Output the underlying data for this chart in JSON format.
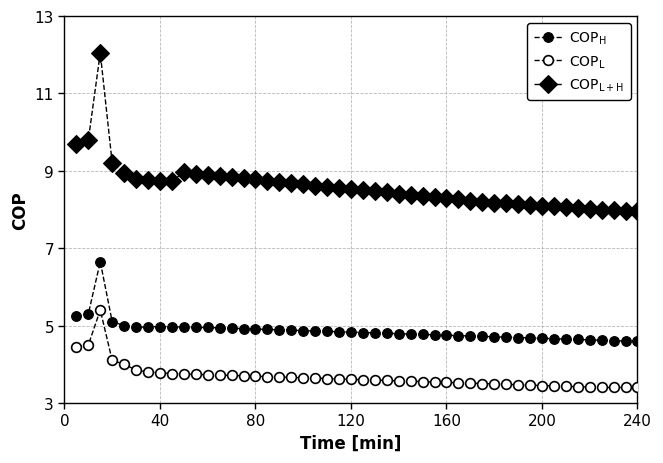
{
  "title": "",
  "xlabel": "Time [min]",
  "ylabel": "COP",
  "xlim": [
    0,
    240
  ],
  "ylim": [
    3,
    13
  ],
  "yticks": [
    3,
    5,
    7,
    9,
    11,
    13
  ],
  "xticks": [
    0,
    40,
    80,
    120,
    160,
    200,
    240
  ],
  "background_color": "#ffffff",
  "grid_color": "#999999",
  "COP_H_x": [
    5,
    10,
    15,
    20,
    25,
    30,
    35,
    40,
    45,
    50,
    55,
    60,
    65,
    70,
    75,
    80,
    85,
    90,
    95,
    100,
    105,
    110,
    115,
    120,
    125,
    130,
    135,
    140,
    145,
    150,
    155,
    160,
    165,
    170,
    175,
    180,
    185,
    190,
    195,
    200,
    205,
    210,
    215,
    220,
    225,
    230,
    235,
    240
  ],
  "COP_H_y": [
    5.25,
    5.3,
    6.65,
    5.1,
    5.0,
    4.95,
    4.97,
    4.97,
    4.97,
    4.96,
    4.95,
    4.95,
    4.94,
    4.93,
    4.92,
    4.91,
    4.9,
    4.89,
    4.88,
    4.87,
    4.86,
    4.85,
    4.84,
    4.83,
    4.82,
    4.81,
    4.8,
    4.79,
    4.78,
    4.77,
    4.76,
    4.75,
    4.74,
    4.73,
    4.72,
    4.71,
    4.7,
    4.69,
    4.68,
    4.67,
    4.66,
    4.65,
    4.64,
    4.63,
    4.62,
    4.61,
    4.6,
    4.6
  ],
  "COP_L_x": [
    5,
    10,
    15,
    20,
    25,
    30,
    35,
    40,
    45,
    50,
    55,
    60,
    65,
    70,
    75,
    80,
    85,
    90,
    95,
    100,
    105,
    110,
    115,
    120,
    125,
    130,
    135,
    140,
    145,
    150,
    155,
    160,
    165,
    170,
    175,
    180,
    185,
    190,
    195,
    200,
    205,
    210,
    215,
    220,
    225,
    230,
    235,
    240
  ],
  "COP_L_y": [
    4.45,
    4.5,
    5.4,
    4.1,
    4.0,
    3.85,
    3.8,
    3.78,
    3.76,
    3.75,
    3.74,
    3.73,
    3.72,
    3.71,
    3.7,
    3.69,
    3.68,
    3.67,
    3.66,
    3.65,
    3.64,
    3.63,
    3.62,
    3.61,
    3.6,
    3.59,
    3.58,
    3.57,
    3.56,
    3.55,
    3.54,
    3.53,
    3.52,
    3.51,
    3.5,
    3.49,
    3.48,
    3.47,
    3.46,
    3.45,
    3.44,
    3.43,
    3.42,
    3.41,
    3.4,
    3.4,
    3.4,
    3.4
  ],
  "COP_LH_x": [
    5,
    10,
    15,
    20,
    25,
    30,
    35,
    40,
    45,
    50,
    55,
    60,
    65,
    70,
    75,
    80,
    85,
    90,
    95,
    100,
    105,
    110,
    115,
    120,
    125,
    130,
    135,
    140,
    145,
    150,
    155,
    160,
    165,
    170,
    175,
    180,
    185,
    190,
    195,
    200,
    205,
    210,
    215,
    220,
    225,
    230,
    235,
    240
  ],
  "COP_LH_y": [
    9.7,
    9.8,
    12.05,
    9.2,
    8.95,
    8.8,
    8.77,
    8.75,
    8.73,
    8.96,
    8.93,
    8.9,
    8.87,
    8.84,
    8.81,
    8.78,
    8.75,
    8.72,
    8.69,
    8.65,
    8.62,
    8.58,
    8.55,
    8.52,
    8.5,
    8.47,
    8.44,
    8.41,
    8.38,
    8.35,
    8.32,
    8.29,
    8.26,
    8.23,
    8.2,
    8.18,
    8.16,
    8.14,
    8.12,
    8.1,
    8.08,
    8.06,
    8.04,
    8.02,
    8.0,
    7.98,
    7.97,
    7.96
  ],
  "line_color": "#000000",
  "line_style": "--",
  "linewidth": 1.0,
  "marker_size_circle": 7,
  "marker_size_diamond": 9
}
